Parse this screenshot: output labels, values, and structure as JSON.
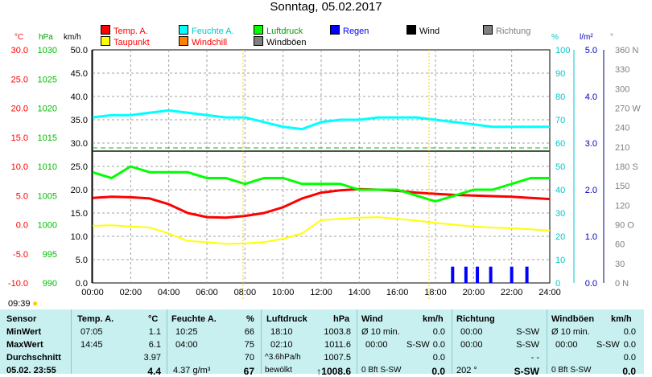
{
  "title": "Sonntag, 05.02.2017",
  "legend": [
    {
      "label": "Temp. A.",
      "color": "#ff0000",
      "text_color": "#ff0000"
    },
    {
      "label": "Feuchte A.",
      "color": "#00ffff",
      "text_color": "#00c8c8"
    },
    {
      "label": "Luftdruck",
      "color": "#00ff00",
      "text_color": "#00a000"
    },
    {
      "label": "Regen",
      "color": "#0000ff",
      "text_color": "#0000ff"
    },
    {
      "label": "Wind",
      "color": "#000000",
      "text_color": "#000000"
    },
    {
      "label": "Richtung",
      "color": "#808080",
      "text_color": "#808080"
    },
    {
      "label": "Taupunkt",
      "color": "#ffff00",
      "text_color": "#ff0000"
    },
    {
      "label": "Windchill",
      "color": "#ff8000",
      "text_color": "#ff0000"
    },
    {
      "label": "Windböen",
      "color": "#808080",
      "text_color": "#000000"
    }
  ],
  "axis_units": {
    "temp": "°C",
    "pressure": "hPa",
    "wind": "km/h",
    "humidity": "%",
    "rain": "l/m²",
    "direction": "°"
  },
  "status_time": "09:39",
  "chart_data": {
    "type": "line",
    "x_ticks": [
      "00:00",
      "02:00",
      "04:00",
      "06:00",
      "08:00",
      "10:00",
      "12:00",
      "14:00",
      "16:00",
      "18:00",
      "20:00",
      "22:00",
      "24:00"
    ],
    "x_range": [
      0,
      24
    ],
    "axes": {
      "temp": {
        "range": [
          -10,
          30
        ],
        "ticks": [
          "30.0",
          "25.0",
          "20.0",
          "15.0",
          "10.0",
          "5.0",
          "0.0",
          "-5.0",
          "-10.0"
        ],
        "color": "#ff0000"
      },
      "pressure": {
        "range": [
          990,
          1030
        ],
        "ticks": [
          "1030",
          "1025",
          "1020",
          "1015",
          "1010",
          "1005",
          "1000",
          "995",
          "990"
        ],
        "color": "#00c000"
      },
      "wind": {
        "range": [
          0,
          50
        ],
        "ticks": [
          "50.0",
          "45.0",
          "40.0",
          "35.0",
          "30.0",
          "25.0",
          "20.0",
          "15.0",
          "10.0",
          "5.0",
          "0.0"
        ],
        "color": "#000000"
      },
      "humidity": {
        "range": [
          0,
          100
        ],
        "ticks": [
          "100",
          "90",
          "80",
          "70",
          "60",
          "50",
          "40",
          "30",
          "20",
          "10",
          "0"
        ],
        "color": "#00c8c8"
      },
      "rain": {
        "range": [
          0,
          5
        ],
        "ticks": [
          "5.0",
          "4.0",
          "3.0",
          "2.0",
          "1.0",
          "0.0"
        ],
        "color": "#0000c0"
      },
      "direction": {
        "ticks": [
          "360 N",
          "330",
          "300",
          "270 W",
          "240",
          "210",
          "180 S",
          "150",
          "120",
          "90 O",
          "60",
          "30",
          "0 N"
        ],
        "color": "#808080"
      }
    },
    "series": [
      {
        "name": "Temp. A.",
        "axis": "temp",
        "color": "#ff0000",
        "width": 3,
        "x": [
          0,
          1,
          2,
          3,
          4,
          5,
          6,
          7,
          8,
          9,
          10,
          11,
          12,
          13,
          14,
          15,
          16,
          17,
          18,
          19,
          20,
          21,
          22,
          23,
          24
        ],
        "y": [
          4.6,
          4.8,
          4.7,
          4.5,
          3.5,
          2.0,
          1.3,
          1.2,
          1.5,
          2.0,
          3.0,
          4.5,
          5.5,
          5.9,
          6.1,
          6.0,
          5.8,
          5.5,
          5.3,
          5.1,
          5.0,
          4.9,
          4.8,
          4.6,
          4.4
        ]
      },
      {
        "name": "Taupunkt",
        "axis": "temp",
        "color": "#ffff00",
        "width": 2,
        "x": [
          0,
          1,
          2,
          3,
          4,
          5,
          6,
          7,
          8,
          9,
          10,
          11,
          12,
          13,
          14,
          15,
          16,
          17,
          18,
          19,
          20,
          21,
          22,
          23,
          24
        ],
        "y": [
          -0.2,
          -0.1,
          -0.3,
          -0.5,
          -1.5,
          -2.8,
          -3.0,
          -3.3,
          -3.2,
          -3.0,
          -2.4,
          -1.5,
          0.8,
          1.0,
          1.2,
          1.3,
          1.0,
          0.7,
          0.3,
          0.0,
          -0.3,
          -0.5,
          -0.6,
          -0.8,
          -1.0
        ]
      },
      {
        "name": "Feuchte A.",
        "axis": "humidity",
        "color": "#00ffff",
        "width": 3,
        "x": [
          0,
          1,
          2,
          3,
          4,
          5,
          6,
          7,
          8,
          9,
          10,
          11,
          12,
          13,
          14,
          15,
          16,
          17,
          18,
          19,
          20,
          21,
          22,
          23,
          24
        ],
        "y": [
          71,
          72,
          72,
          73,
          74,
          73,
          72,
          71,
          71,
          69,
          67,
          66,
          69,
          70,
          70,
          71,
          71,
          71,
          70,
          69,
          68,
          67,
          67,
          67,
          67
        ]
      },
      {
        "name": "Luftdruck",
        "axis": "pressure",
        "color": "#00ff00",
        "width": 3,
        "x": [
          0,
          1,
          2,
          3,
          4,
          5,
          6,
          7,
          8,
          9,
          10,
          11,
          12,
          13,
          14,
          15,
          16,
          17,
          18,
          19,
          20,
          21,
          22,
          23,
          24
        ],
        "y": [
          1009,
          1008,
          1010,
          1009,
          1009,
          1009,
          1008,
          1008,
          1007,
          1008,
          1008,
          1007,
          1007,
          1007,
          1006,
          1006,
          1006,
          1005,
          1004,
          1005,
          1006,
          1006,
          1007,
          1008,
          1008
        ]
      },
      {
        "name": "Regen",
        "axis": "rain",
        "color": "#0000ff",
        "type": "bar",
        "x": [
          18.9,
          19.6,
          20.2,
          20.9,
          22.0,
          22.8
        ],
        "y": [
          0.35,
          0.35,
          0.35,
          0.35,
          0.35,
          0.35
        ]
      }
    ]
  },
  "table": {
    "col1": {
      "header": "Sensor",
      "rows": [
        "MinWert",
        "MaxWert",
        "Durchschnitt",
        "05.02. 23:55"
      ]
    },
    "temp": {
      "header": "Temp. A.",
      "unit": "°C",
      "rows": [
        [
          "07:05",
          "1.1"
        ],
        [
          "14:45",
          "6.1"
        ],
        [
          "",
          "3.97"
        ],
        [
          "",
          "4.4"
        ]
      ]
    },
    "hum": {
      "header": "Feuchte A.",
      "unit": "%",
      "rows": [
        [
          "10:25",
          "66"
        ],
        [
          "04:00",
          "75"
        ],
        [
          "",
          "70"
        ],
        [
          "4.37 g/m³",
          "67"
        ]
      ]
    },
    "press": {
      "header": "Luftdruck",
      "unit": "hPa",
      "rows": [
        [
          "18:10",
          "1003.8"
        ],
        [
          "02:10",
          "1011.6"
        ],
        [
          "^3.6hPa/h",
          "1007.5"
        ],
        [
          "bewölkt",
          "↑1008.6"
        ]
      ]
    },
    "wind": {
      "header": "Wind",
      "unit": "km/h",
      "rows": [
        [
          "Ø 10 min.",
          "",
          "0.0"
        ],
        [
          "00:00",
          "S-SW",
          "0.0"
        ],
        [
          "",
          "",
          "0.0"
        ],
        [
          "0 Bft S-SW",
          "",
          "0.0"
        ]
      ]
    },
    "dir": {
      "header": "Richtung",
      "rows": [
        [
          "00:00",
          "S-SW"
        ],
        [
          "00:00",
          "S-SW"
        ],
        [
          "",
          "- -"
        ],
        [
          "202 °",
          "S-SW"
        ]
      ]
    },
    "gust": {
      "header": "Windböen",
      "unit": "km/h",
      "rows": [
        [
          "Ø 10 min.",
          "",
          "0.0"
        ],
        [
          "00:00",
          "S-SW",
          "0.0"
        ],
        [
          "",
          "",
          "0.0"
        ],
        [
          "0 Bft S-SW",
          "",
          "0.0"
        ]
      ]
    }
  }
}
